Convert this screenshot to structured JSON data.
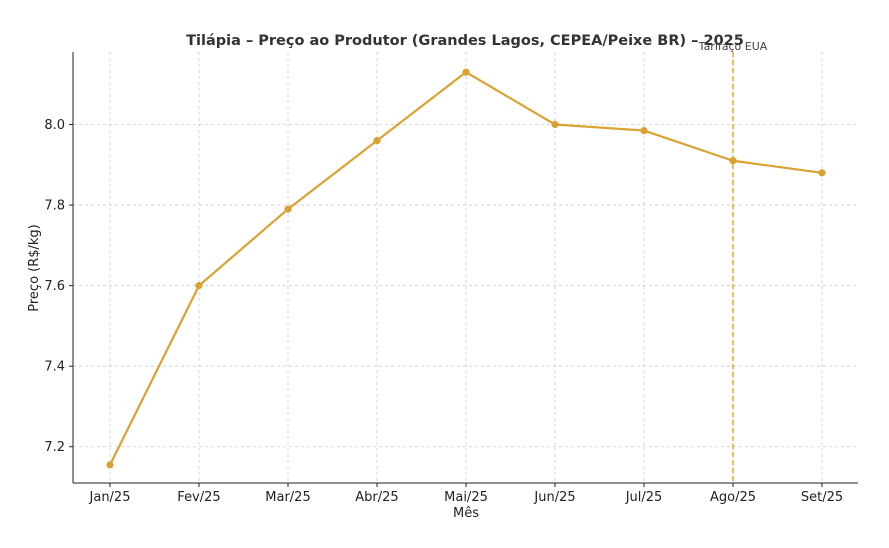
{
  "chart_data": {
    "type": "line",
    "title": "Tilápia – Preço ao Produtor (Grandes Lagos, CEPEA/Peixe BR) – 2025",
    "xlabel": "Mês",
    "ylabel": "Preço (R$/kg)",
    "categories": [
      "Jan/25",
      "Fev/25",
      "Mar/25",
      "Abr/25",
      "Mai/25",
      "Jun/25",
      "Jul/25",
      "Ago/25",
      "Set/25"
    ],
    "series": [
      {
        "values": [
          7.155,
          7.6,
          7.79,
          7.96,
          8.13,
          8.0,
          7.985,
          7.91,
          7.88
        ],
        "color": "#DAA232"
      }
    ],
    "ylim": [
      7.11,
      8.18
    ],
    "yticks": [
      "7.2",
      "7.4",
      "7.6",
      "7.8",
      "8.0"
    ],
    "grid": true,
    "annotation": {
      "label": "Tarifaço EUA",
      "x_category": "Ago/25",
      "line_style": "dashed",
      "color": "#DAA232"
    }
  }
}
